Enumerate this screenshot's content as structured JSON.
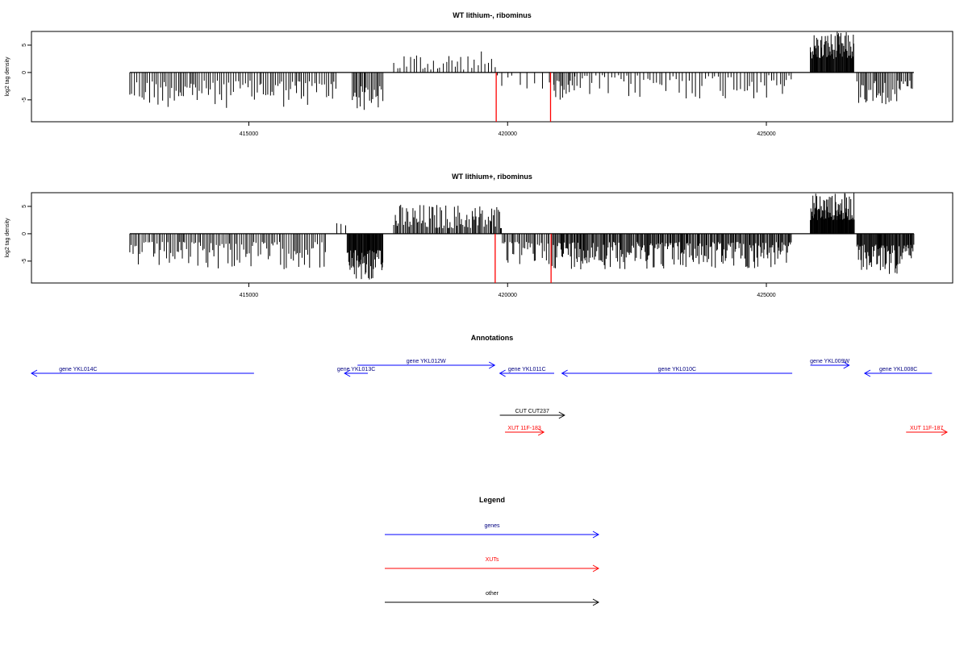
{
  "chart_data": [
    {
      "type": "bar",
      "title": "WT lithium-, ribominus",
      "xlabel": "",
      "ylabel": "log2 tag density",
      "xlim": [
        410800,
        428600
      ],
      "ylim": [
        -9,
        7.5
      ],
      "xticks": [
        415000,
        420000,
        425000
      ],
      "yticks": [
        -5,
        0,
        5
      ],
      "series": [
        {
          "color": "#000000",
          "segments": [
            {
              "start": 412700,
              "end": 416700,
              "sign": -1,
              "min": 1.5,
              "max": 6.5,
              "step": 40
            },
            {
              "start": 417000,
              "end": 417600,
              "sign": -1,
              "min": 2.5,
              "max": 7,
              "step": 25
            },
            {
              "start": 417800,
              "end": 419800,
              "sign": 1,
              "min": 0.5,
              "max": 4,
              "step": 60
            },
            {
              "start": 419800,
              "end": 420900,
              "sign": -1,
              "min": 0.5,
              "max": 3,
              "step": 120
            },
            {
              "start": 420900,
              "end": 421300,
              "sign": -1,
              "min": 1.5,
              "max": 5,
              "step": 30
            },
            {
              "start": 421300,
              "end": 425500,
              "sign": -1,
              "min": 0.5,
              "max": 5,
              "step": 60
            },
            {
              "start": 425850,
              "end": 426700,
              "sign": 1,
              "min": 2.5,
              "max": 7.5,
              "step": 12
            },
            {
              "start": 426750,
              "end": 427850,
              "sign": -1,
              "min": 1.5,
              "max": 6,
              "step": 30
            }
          ]
        },
        {
          "color": "#ff0000",
          "bars": [
            [
              419780,
              -9
            ],
            [
              420830,
              -9
            ]
          ]
        }
      ]
    },
    {
      "type": "bar",
      "title": "WT lithium+, ribominus",
      "xlabel": "",
      "ylabel": "log2 tag density",
      "xlim": [
        410800,
        428600
      ],
      "ylim": [
        -9,
        7.5
      ],
      "xticks": [
        415000,
        420000,
        425000
      ],
      "yticks": [
        -5,
        0,
        5
      ],
      "series": [
        {
          "color": "#000000",
          "segments": [
            {
              "start": 412700,
              "end": 416500,
              "sign": -1,
              "min": 1.5,
              "max": 6.5,
              "step": 35
            },
            {
              "start": 416700,
              "end": 416900,
              "sign": 1,
              "min": 1.5,
              "max": 2.5,
              "step": 90
            },
            {
              "start": 416900,
              "end": 417600,
              "sign": -1,
              "min": 3,
              "max": 9,
              "step": 12
            },
            {
              "start": 417800,
              "end": 419900,
              "sign": 1,
              "min": 1,
              "max": 5.5,
              "step": 25
            },
            {
              "start": 419900,
              "end": 420900,
              "sign": -1,
              "min": 1.5,
              "max": 6,
              "step": 30
            },
            {
              "start": 420900,
              "end": 425500,
              "sign": -1,
              "min": 1.5,
              "max": 6.5,
              "step": 20
            },
            {
              "start": 425850,
              "end": 426700,
              "sign": 1,
              "min": 2.5,
              "max": 7.5,
              "step": 10
            },
            {
              "start": 426750,
              "end": 427850,
              "sign": -1,
              "min": 2,
              "max": 7.5,
              "step": 15
            }
          ]
        },
        {
          "color": "#ff0000",
          "bars": [
            [
              419760,
              -9
            ],
            [
              420840,
              -9
            ]
          ]
        }
      ]
    }
  ],
  "annotations": {
    "title": "Annotations",
    "items": [
      {
        "label": "gene YKL014C",
        "start": 410800,
        "end": 415100,
        "row": 0,
        "direction": "left",
        "kind": "gene",
        "label_pos": "left"
      },
      {
        "label": "gene YKL013C",
        "start": 416850,
        "end": 417300,
        "row": 0,
        "direction": "left",
        "kind": "gene",
        "label_pos": "center"
      },
      {
        "label": "gene YKL012W",
        "start": 417100,
        "end": 419750,
        "row": -1,
        "direction": "right",
        "kind": "gene",
        "label_pos": "center"
      },
      {
        "label": "gene YKL011C",
        "start": 419850,
        "end": 420900,
        "row": 0,
        "direction": "left",
        "kind": "gene",
        "label_pos": "center"
      },
      {
        "label": "gene YKL010C",
        "start": 421050,
        "end": 425500,
        "row": 0,
        "direction": "left",
        "kind": "gene",
        "label_pos": "center"
      },
      {
        "label": "gene YKL009W",
        "start": 425850,
        "end": 426600,
        "row": -1,
        "direction": "right",
        "kind": "gene",
        "label_pos": "center"
      },
      {
        "label": "gene YKL008C",
        "start": 426900,
        "end": 428200,
        "row": 0,
        "direction": "left",
        "kind": "gene",
        "label_pos": "center"
      },
      {
        "label": "CUT CUT237",
        "start": 419850,
        "end": 421100,
        "row": 1,
        "direction": "right",
        "kind": "other",
        "label_pos": "center"
      },
      {
        "label": "XUT 11F-183",
        "start": 419950,
        "end": 420700,
        "row": 2,
        "direction": "right",
        "kind": "xut",
        "label_pos": "center"
      },
      {
        "label": "XUT 11F-187",
        "start": 427700,
        "end": 428600,
        "row": 2,
        "direction": "right",
        "kind": "xut",
        "label_pos": "center"
      }
    ]
  },
  "legend": {
    "title": "Legend",
    "entries": [
      {
        "label": "genes",
        "kind": "gene"
      },
      {
        "label": "XUTs",
        "kind": "xut"
      },
      {
        "label": "other",
        "kind": "other"
      }
    ]
  },
  "colors": {
    "gene": "#0000ff",
    "xut": "#ff0000",
    "other": "#000000",
    "gene_label": "#000080",
    "frame": "#000000"
  }
}
